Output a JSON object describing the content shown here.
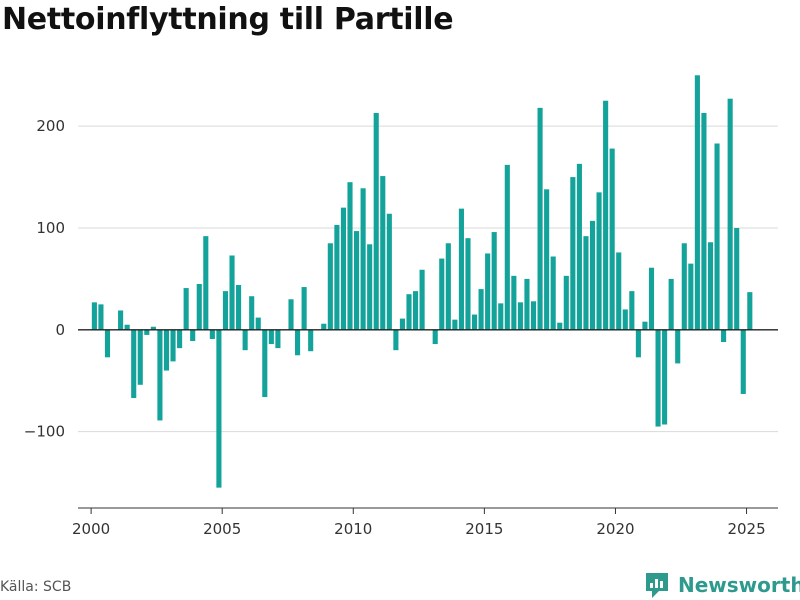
{
  "title": "Nettoinflyttning till Partille",
  "source": "Källa: SCB",
  "brand": "Newsworthy",
  "colors": {
    "bar": "#14a39a",
    "grid": "#d9d9d9",
    "axis": "#333333",
    "brand": "#2e9a8e"
  },
  "chart_data": {
    "type": "bar",
    "title": "Nettoinflyttning till Partille",
    "xlabel": "",
    "ylabel": "",
    "grid": true,
    "xlim": [
      1999.5,
      2026.2
    ],
    "ylim": [
      -175,
      265
    ],
    "x_ticks": [
      2000,
      2005,
      2010,
      2015,
      2020,
      2025
    ],
    "x_tick_labels": [
      "2000",
      "2005",
      "2010",
      "2015",
      "2020",
      "2025"
    ],
    "y_ticks": [
      -100,
      0,
      100,
      200
    ],
    "y_tick_labels": [
      "−100",
      "0",
      "100",
      "200"
    ],
    "x": [
      2000.125,
      2000.375,
      2000.625,
      2000.875,
      2001.125,
      2001.375,
      2001.625,
      2001.875,
      2002.125,
      2002.375,
      2002.625,
      2002.875,
      2003.125,
      2003.375,
      2003.625,
      2003.875,
      2004.125,
      2004.375,
      2004.625,
      2004.875,
      2005.125,
      2005.375,
      2005.625,
      2005.875,
      2006.125,
      2006.375,
      2006.625,
      2006.875,
      2007.125,
      2007.375,
      2007.625,
      2007.875,
      2008.125,
      2008.375,
      2008.625,
      2008.875,
      2009.125,
      2009.375,
      2009.625,
      2009.875,
      2010.125,
      2010.375,
      2010.625,
      2010.875,
      2011.125,
      2011.375,
      2011.625,
      2011.875,
      2012.125,
      2012.375,
      2012.625,
      2012.875,
      2013.125,
      2013.375,
      2013.625,
      2013.875,
      2014.125,
      2014.375,
      2014.625,
      2014.875,
      2015.125,
      2015.375,
      2015.625,
      2015.875,
      2016.125,
      2016.375,
      2016.625,
      2016.875,
      2017.125,
      2017.375,
      2017.625,
      2017.875,
      2018.125,
      2018.375,
      2018.625,
      2018.875,
      2019.125,
      2019.375,
      2019.625,
      2019.875,
      2020.125,
      2020.375,
      2020.625,
      2020.875,
      2021.125,
      2021.375,
      2021.625,
      2021.875,
      2022.125,
      2022.375,
      2022.625,
      2022.875,
      2023.125,
      2023.375,
      2023.625,
      2023.875,
      2024.125,
      2024.375,
      2024.625,
      2024.875,
      2025.125
    ],
    "series": [
      {
        "values": [
          27,
          25,
          -27,
          0,
          19,
          5,
          -67,
          -54,
          -5,
          3,
          -89,
          -40,
          -31,
          -18,
          41,
          -11,
          45,
          92,
          -9,
          -155,
          38,
          73,
          44,
          -20,
          33,
          12,
          -66,
          -14,
          -18,
          0,
          30,
          -25,
          42,
          -21,
          0,
          6,
          85,
          103,
          120,
          145,
          97,
          139,
          84,
          213,
          151,
          114,
          -20,
          11,
          35,
          38,
          59,
          0,
          -14,
          70,
          85,
          10,
          119,
          90,
          15,
          40,
          75,
          96,
          26,
          162,
          53,
          27,
          50,
          28,
          218,
          138,
          72,
          7,
          53,
          150,
          163,
          92,
          107,
          135,
          225,
          178,
          76,
          20,
          38,
          -27,
          8,
          61,
          -95,
          -93,
          50,
          -33,
          85,
          65,
          250,
          213,
          86,
          183,
          -12,
          227,
          100,
          -63,
          37
        ]
      }
    ]
  }
}
